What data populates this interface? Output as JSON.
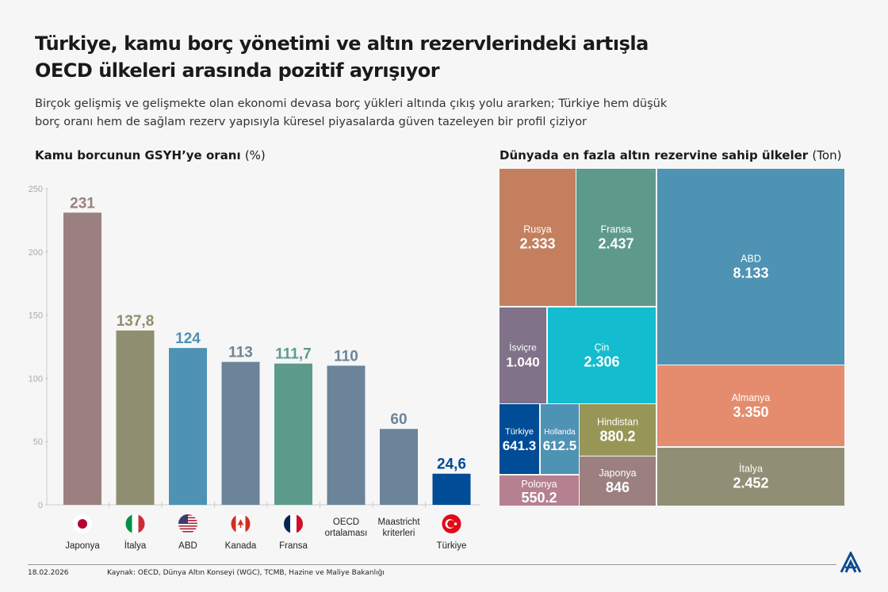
{
  "header": {
    "title_line1": "Türkiye, kamu borç yönetimi ve altın rezervlerindeki artışla",
    "title_line2": "OECD ülkeleri arasında pozitif ayrışıyor",
    "subtitle_line1": "Birçok gelişmiş ve gelişmekte olan ekonomi devasa borç yükleri altında çıkış yolu ararken; Türkiye hem düşük",
    "subtitle_line2": "borç oranı hem de sağlam rezerv yapısıyla küresel piyasalarda güven tazeleyen bir profil çiziyor"
  },
  "chart_data": [
    {
      "type": "bar",
      "title": "Kamu borcunun GSYH’ye oranı",
      "title_unit": "(%)",
      "categories": [
        "Japonya",
        "İtalya",
        "ABD",
        "Kanada",
        "Fransa",
        "OECD ortalaması",
        "Maastricht kriterleri",
        "Türkiye"
      ],
      "category_lines": [
        [
          "Japonya"
        ],
        [
          "İtalya"
        ],
        [
          "ABD"
        ],
        [
          "Kanada"
        ],
        [
          "Fransa"
        ],
        [
          "OECD",
          "ortalaması"
        ],
        [
          "Maastricht",
          "kriterleri"
        ],
        [
          "Türkiye"
        ]
      ],
      "flags": [
        "japan-flag",
        "italy-flag",
        "usa-flag",
        "canada-flag",
        "france-flag",
        null,
        null,
        "turkey-flag"
      ],
      "values": [
        231,
        137.8,
        124,
        113,
        111.7,
        110,
        60,
        24.6
      ],
      "value_labels": [
        "231",
        "137,8",
        "124",
        "113",
        "111,7",
        "110",
        "60",
        "24,6"
      ],
      "colors": [
        "#9b807f",
        "#908e70",
        "#4e92b4",
        "#6b8499",
        "#5c9b8c",
        "#6b8499",
        "#6b8499",
        "#004c96"
      ],
      "ylim": [
        0,
        250
      ],
      "yticks": [
        0,
        50,
        100,
        150,
        200,
        250
      ],
      "grid": false
    },
    {
      "type": "treemap",
      "title": "Dünyada en fazla altın rezervine sahip ülkeler",
      "title_unit": "(Ton)",
      "cells": [
        {
          "name": "Rusya",
          "label": "2.333",
          "value": 2333,
          "color": "#c47f5e"
        },
        {
          "name": "Fransa",
          "label": "2.437",
          "value": 2437,
          "color": "#5d9a8c"
        },
        {
          "name": "ABD",
          "label": "8.133",
          "value": 8133,
          "color": "#4e92b4"
        },
        {
          "name": "İsviçre",
          "label": "1.040",
          "value": 1040,
          "color": "#7f7289"
        },
        {
          "name": "Çin",
          "label": "2.306",
          "value": 2306,
          "color": "#14bccf"
        },
        {
          "name": "Türkiye",
          "label": "641.3",
          "value": 641.3,
          "color": "#004c96"
        },
        {
          "name": "Hollanda",
          "label": "612.5",
          "value": 612.5,
          "color": "#4e92b4"
        },
        {
          "name": "Hindistan",
          "label": "880.2",
          "value": 880.2,
          "color": "#979656"
        },
        {
          "name": "Polonya",
          "label": "550.2",
          "value": 550.2,
          "color": "#b5808f"
        },
        {
          "name": "Japonya",
          "label": "846",
          "value": 846,
          "color": "#9b807f"
        },
        {
          "name": "Almanya",
          "label": "3.350",
          "value": 3350,
          "color": "#e58c6e"
        },
        {
          "name": "İtalya",
          "label": "2.452",
          "value": 2452,
          "color": "#908e74"
        }
      ]
    }
  ],
  "footer": {
    "date": "18.02.2026",
    "source": "Kaynak: OECD, Dünya Altın Konseyi (WGC), TCMB, Hazine ve Maliye Bakanlığı",
    "logo_text": "AA"
  }
}
